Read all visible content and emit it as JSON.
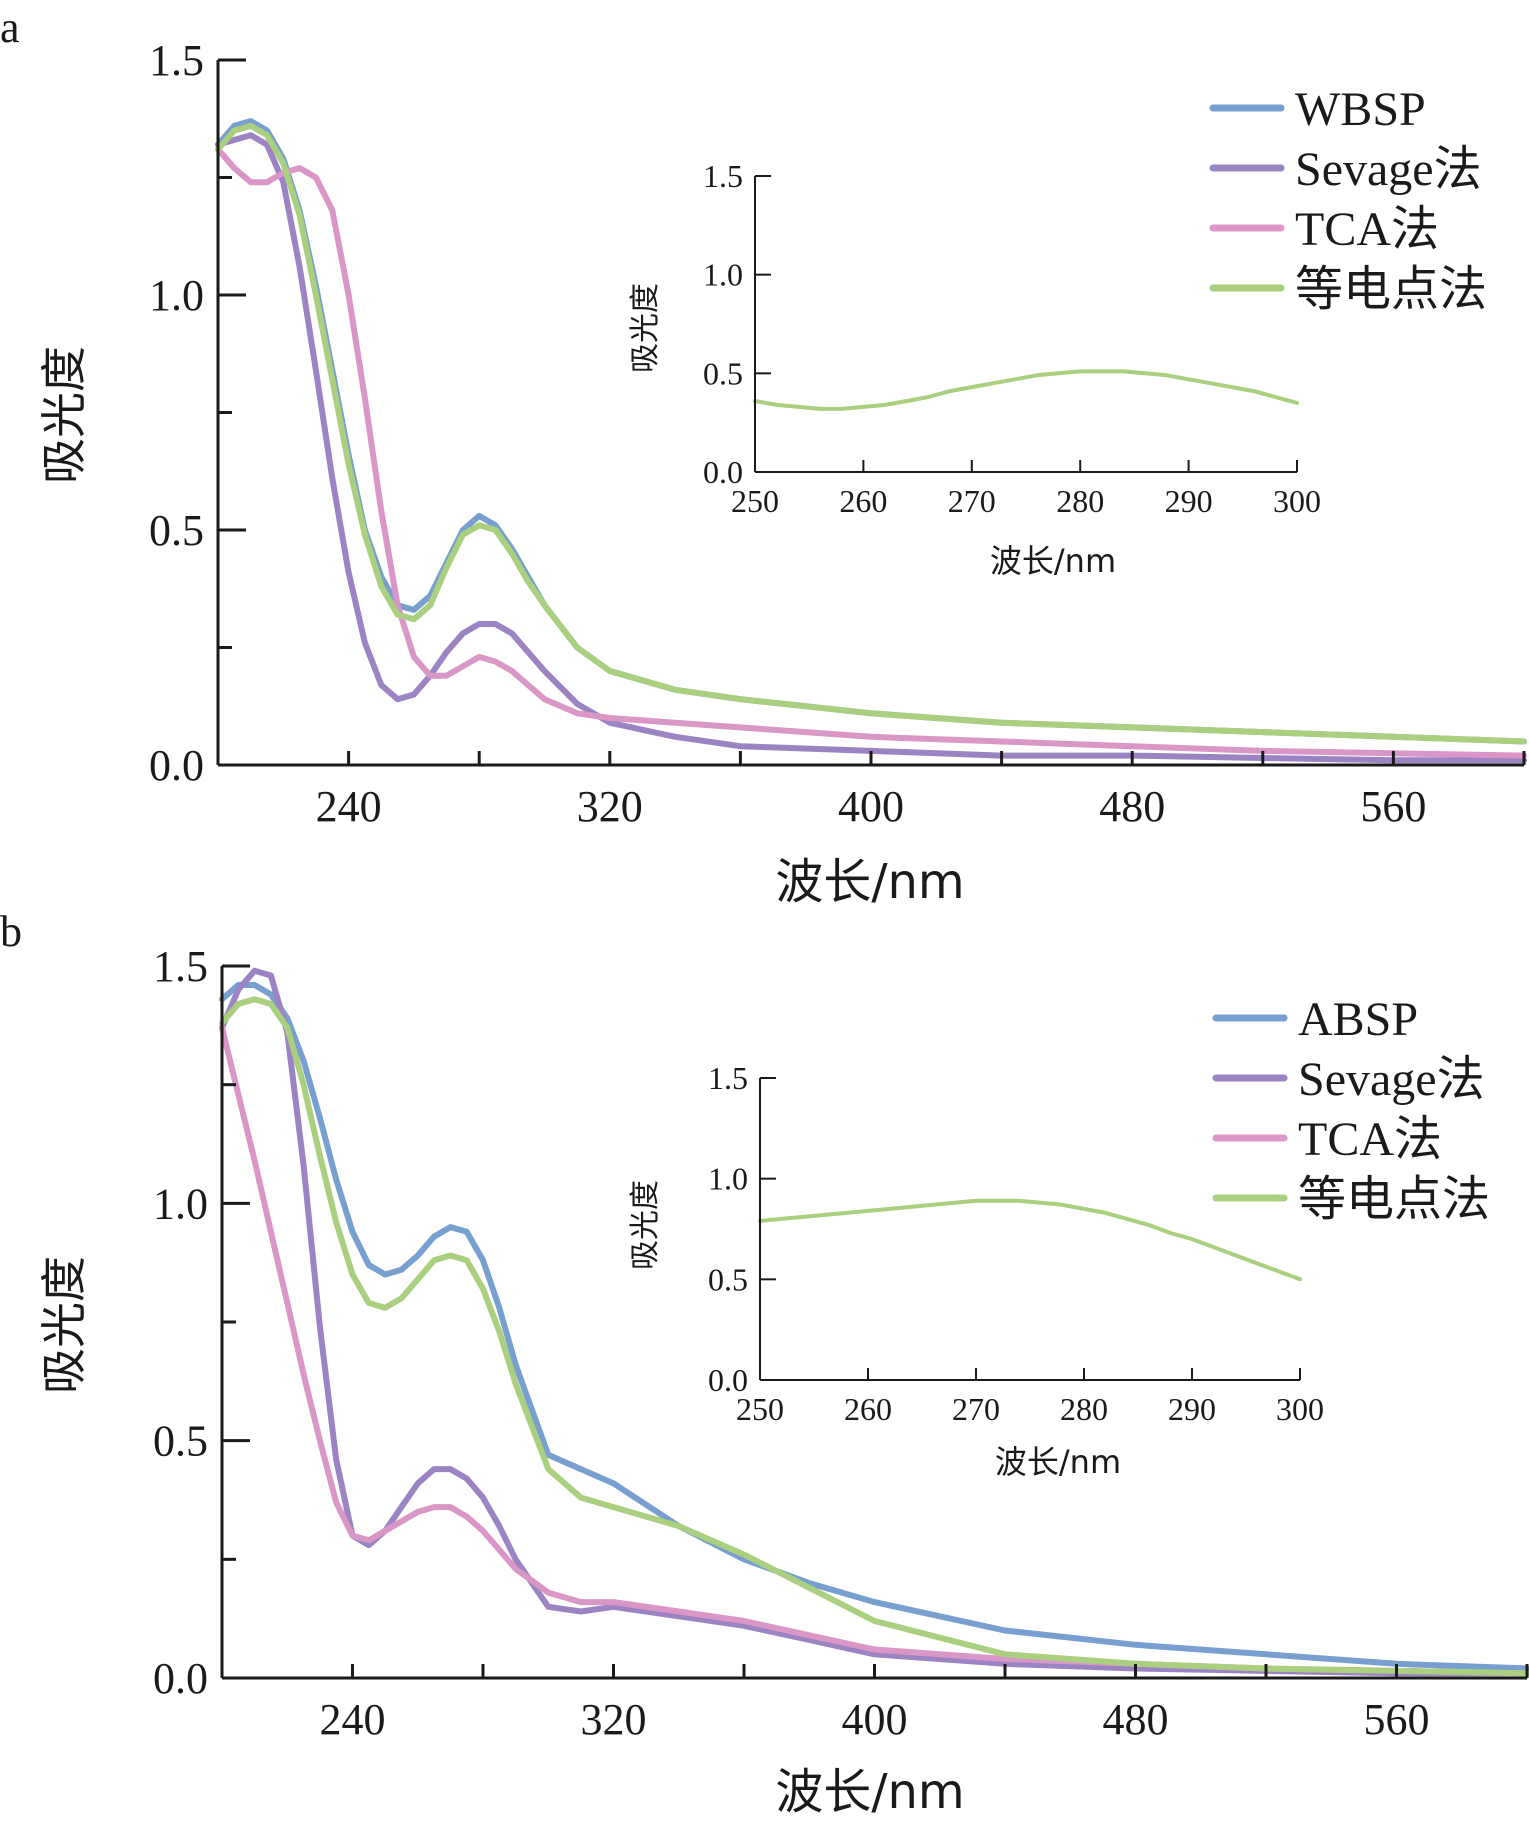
{
  "colors": {
    "blue": "#779fd0",
    "purple": "#9b83c4",
    "pink": "#da96c6",
    "green": "#a9cf7f",
    "axis": "#1a1a1a"
  },
  "chart_data": [
    {
      "panel_label": "a",
      "type": "line",
      "title": "",
      "xlabel": "波长/nm",
      "ylabel": "吸光度",
      "xlim": [
        200,
        600
      ],
      "ylim": [
        0,
        1.5
      ],
      "xticks": [
        240,
        320,
        400,
        480,
        560
      ],
      "yticks": [
        0.0,
        0.5,
        1.0,
        1.5
      ],
      "xtick_labels": [
        "240",
        "320",
        "400",
        "480",
        "560"
      ],
      "ytick_labels": [
        "0.0",
        "0.5",
        "1.0",
        "1.5"
      ],
      "legend_position": "top-right",
      "series": [
        {
          "name": "WBSP",
          "color_key": "blue",
          "x": [
            200,
            205,
            210,
            215,
            220,
            225,
            230,
            235,
            240,
            245,
            250,
            255,
            260,
            265,
            270,
            275,
            280,
            285,
            290,
            295,
            300,
            310,
            320,
            340,
            360,
            400,
            440,
            480,
            520,
            560,
            600
          ],
          "y": [
            1.32,
            1.36,
            1.37,
            1.35,
            1.29,
            1.18,
            1.02,
            0.84,
            0.66,
            0.5,
            0.4,
            0.34,
            0.33,
            0.36,
            0.43,
            0.5,
            0.53,
            0.51,
            0.46,
            0.4,
            0.34,
            0.25,
            0.2,
            0.16,
            0.14,
            0.11,
            0.09,
            0.08,
            0.07,
            0.06,
            0.05
          ]
        },
        {
          "name": "Sevage法",
          "color_key": "purple",
          "x": [
            200,
            205,
            210,
            215,
            220,
            225,
            230,
            235,
            240,
            245,
            250,
            255,
            260,
            265,
            270,
            275,
            280,
            285,
            290,
            295,
            300,
            310,
            320,
            340,
            360,
            400,
            440,
            480,
            520,
            560,
            600
          ],
          "y": [
            1.32,
            1.33,
            1.34,
            1.32,
            1.24,
            1.06,
            0.84,
            0.61,
            0.41,
            0.26,
            0.17,
            0.14,
            0.15,
            0.19,
            0.24,
            0.28,
            0.3,
            0.3,
            0.28,
            0.24,
            0.2,
            0.13,
            0.09,
            0.06,
            0.04,
            0.03,
            0.02,
            0.02,
            0.015,
            0.01,
            0.01
          ]
        },
        {
          "name": "TCA法",
          "color_key": "pink",
          "x": [
            200,
            205,
            210,
            215,
            220,
            225,
            230,
            235,
            240,
            245,
            250,
            255,
            260,
            265,
            270,
            275,
            280,
            285,
            290,
            295,
            300,
            310,
            320,
            340,
            360,
            400,
            440,
            480,
            520,
            560,
            600
          ],
          "y": [
            1.31,
            1.27,
            1.24,
            1.24,
            1.26,
            1.27,
            1.25,
            1.18,
            1.0,
            0.78,
            0.54,
            0.34,
            0.23,
            0.19,
            0.19,
            0.21,
            0.23,
            0.22,
            0.2,
            0.17,
            0.14,
            0.11,
            0.1,
            0.09,
            0.08,
            0.06,
            0.05,
            0.04,
            0.03,
            0.025,
            0.02
          ]
        },
        {
          "name": "等电点法",
          "color_key": "green",
          "x": [
            200,
            205,
            210,
            215,
            220,
            225,
            230,
            235,
            240,
            245,
            250,
            255,
            260,
            265,
            270,
            275,
            280,
            285,
            290,
            295,
            300,
            310,
            320,
            340,
            360,
            400,
            440,
            480,
            520,
            560,
            600
          ],
          "y": [
            1.31,
            1.35,
            1.36,
            1.34,
            1.28,
            1.17,
            1.0,
            0.82,
            0.64,
            0.49,
            0.38,
            0.32,
            0.31,
            0.34,
            0.42,
            0.49,
            0.51,
            0.5,
            0.45,
            0.39,
            0.34,
            0.25,
            0.2,
            0.16,
            0.14,
            0.11,
            0.09,
            0.08,
            0.07,
            0.06,
            0.05
          ]
        }
      ],
      "inset": {
        "type": "line",
        "xlabel": "波长/nm",
        "ylabel": "吸光度",
        "xlim": [
          250,
          300
        ],
        "ylim": [
          0,
          1.5
        ],
        "xticks": [
          250,
          260,
          270,
          280,
          290,
          300
        ],
        "yticks": [
          0.0,
          0.5,
          1.0,
          1.5
        ],
        "xtick_labels": [
          "250",
          "260",
          "270",
          "280",
          "290",
          "300"
        ],
        "ytick_labels": [
          "0.0",
          "0.5",
          "1.0",
          "1.5"
        ],
        "series": [
          {
            "name": "等电点法",
            "color_key": "green",
            "x": [
              250,
              252,
              254,
              256,
              258,
              260,
              262,
              264,
              266,
              268,
              270,
              272,
              274,
              276,
              278,
              280,
              282,
              284,
              286,
              288,
              290,
              292,
              294,
              296,
              298,
              300
            ],
            "y": [
              0.36,
              0.34,
              0.33,
              0.32,
              0.32,
              0.33,
              0.34,
              0.36,
              0.38,
              0.41,
              0.43,
              0.45,
              0.47,
              0.49,
              0.5,
              0.51,
              0.51,
              0.51,
              0.5,
              0.49,
              0.47,
              0.45,
              0.43,
              0.41,
              0.38,
              0.35
            ]
          }
        ]
      }
    },
    {
      "panel_label": "b",
      "type": "line",
      "title": "",
      "xlabel": "波长/nm",
      "ylabel": "吸光度",
      "xlim": [
        200,
        600
      ],
      "ylim": [
        0,
        1.5
      ],
      "xticks": [
        240,
        320,
        400,
        480,
        560
      ],
      "yticks": [
        0.0,
        0.5,
        1.0,
        1.5
      ],
      "xtick_labels": [
        "240",
        "320",
        "400",
        "480",
        "560"
      ],
      "ytick_labels": [
        "0.0",
        "0.5",
        "1.0",
        "1.5"
      ],
      "legend_position": "top-right",
      "series": [
        {
          "name": "ABSP",
          "color_key": "blue",
          "x": [
            200,
            205,
            210,
            215,
            220,
            225,
            230,
            235,
            240,
            245,
            250,
            255,
            260,
            265,
            270,
            275,
            280,
            285,
            290,
            300,
            310,
            320,
            340,
            360,
            380,
            400,
            440,
            480,
            520,
            560,
            600
          ],
          "y": [
            1.43,
            1.46,
            1.46,
            1.44,
            1.39,
            1.3,
            1.18,
            1.05,
            0.94,
            0.87,
            0.85,
            0.86,
            0.89,
            0.93,
            0.95,
            0.94,
            0.88,
            0.78,
            0.66,
            0.47,
            0.44,
            0.41,
            0.32,
            0.25,
            0.2,
            0.16,
            0.1,
            0.07,
            0.05,
            0.03,
            0.02
          ]
        },
        {
          "name": "Sevage法",
          "color_key": "purple",
          "x": [
            200,
            205,
            210,
            215,
            220,
            225,
            230,
            235,
            240,
            245,
            250,
            255,
            260,
            265,
            270,
            275,
            280,
            285,
            290,
            300,
            310,
            320,
            340,
            360,
            380,
            400,
            440,
            480,
            520,
            560,
            600
          ],
          "y": [
            1.37,
            1.45,
            1.49,
            1.48,
            1.36,
            1.08,
            0.74,
            0.46,
            0.3,
            0.28,
            0.31,
            0.36,
            0.41,
            0.44,
            0.44,
            0.42,
            0.38,
            0.32,
            0.25,
            0.15,
            0.14,
            0.15,
            0.13,
            0.11,
            0.08,
            0.05,
            0.03,
            0.02,
            0.015,
            0.01,
            0.01
          ]
        },
        {
          "name": "TCA法",
          "color_key": "pink",
          "x": [
            200,
            205,
            210,
            215,
            220,
            225,
            230,
            235,
            240,
            245,
            250,
            255,
            260,
            265,
            270,
            275,
            280,
            285,
            290,
            300,
            310,
            320,
            340,
            360,
            380,
            400,
            440,
            480,
            520,
            560,
            600
          ],
          "y": [
            1.37,
            1.23,
            1.09,
            0.94,
            0.79,
            0.64,
            0.5,
            0.37,
            0.3,
            0.29,
            0.31,
            0.33,
            0.35,
            0.36,
            0.36,
            0.34,
            0.31,
            0.27,
            0.23,
            0.18,
            0.16,
            0.16,
            0.14,
            0.12,
            0.09,
            0.06,
            0.04,
            0.03,
            0.02,
            0.015,
            0.01
          ]
        },
        {
          "name": "等电点法",
          "color_key": "green",
          "x": [
            200,
            205,
            210,
            215,
            220,
            225,
            230,
            235,
            240,
            245,
            250,
            255,
            260,
            265,
            270,
            275,
            280,
            285,
            290,
            300,
            310,
            320,
            340,
            360,
            380,
            400,
            440,
            480,
            520,
            560,
            600
          ],
          "y": [
            1.38,
            1.42,
            1.43,
            1.42,
            1.37,
            1.25,
            1.1,
            0.96,
            0.85,
            0.79,
            0.78,
            0.8,
            0.84,
            0.88,
            0.89,
            0.88,
            0.82,
            0.73,
            0.62,
            0.44,
            0.38,
            0.36,
            0.32,
            0.26,
            0.19,
            0.12,
            0.05,
            0.03,
            0.02,
            0.015,
            0.01
          ]
        }
      ],
      "inset": {
        "type": "line",
        "xlabel": "波长/nm",
        "ylabel": "吸光度",
        "xlim": [
          250,
          300
        ],
        "ylim": [
          0,
          1.5
        ],
        "xticks": [
          250,
          260,
          270,
          280,
          290,
          300
        ],
        "yticks": [
          0.0,
          0.5,
          1.0,
          1.5
        ],
        "xtick_labels": [
          "250",
          "260",
          "270",
          "280",
          "290",
          "300"
        ],
        "ytick_labels": [
          "0.0",
          "0.5",
          "1.0",
          "1.5"
        ],
        "series": [
          {
            "name": "等电点法",
            "color_key": "green",
            "x": [
              250,
              252,
              254,
              256,
              258,
              260,
              262,
              264,
              266,
              268,
              270,
              272,
              274,
              276,
              278,
              280,
              282,
              284,
              286,
              288,
              290,
              292,
              294,
              296,
              298,
              300
            ],
            "y": [
              0.79,
              0.8,
              0.81,
              0.82,
              0.83,
              0.84,
              0.85,
              0.86,
              0.87,
              0.88,
              0.89,
              0.89,
              0.89,
              0.88,
              0.87,
              0.85,
              0.83,
              0.8,
              0.77,
              0.73,
              0.7,
              0.66,
              0.62,
              0.58,
              0.54,
              0.5
            ]
          }
        ]
      }
    }
  ]
}
